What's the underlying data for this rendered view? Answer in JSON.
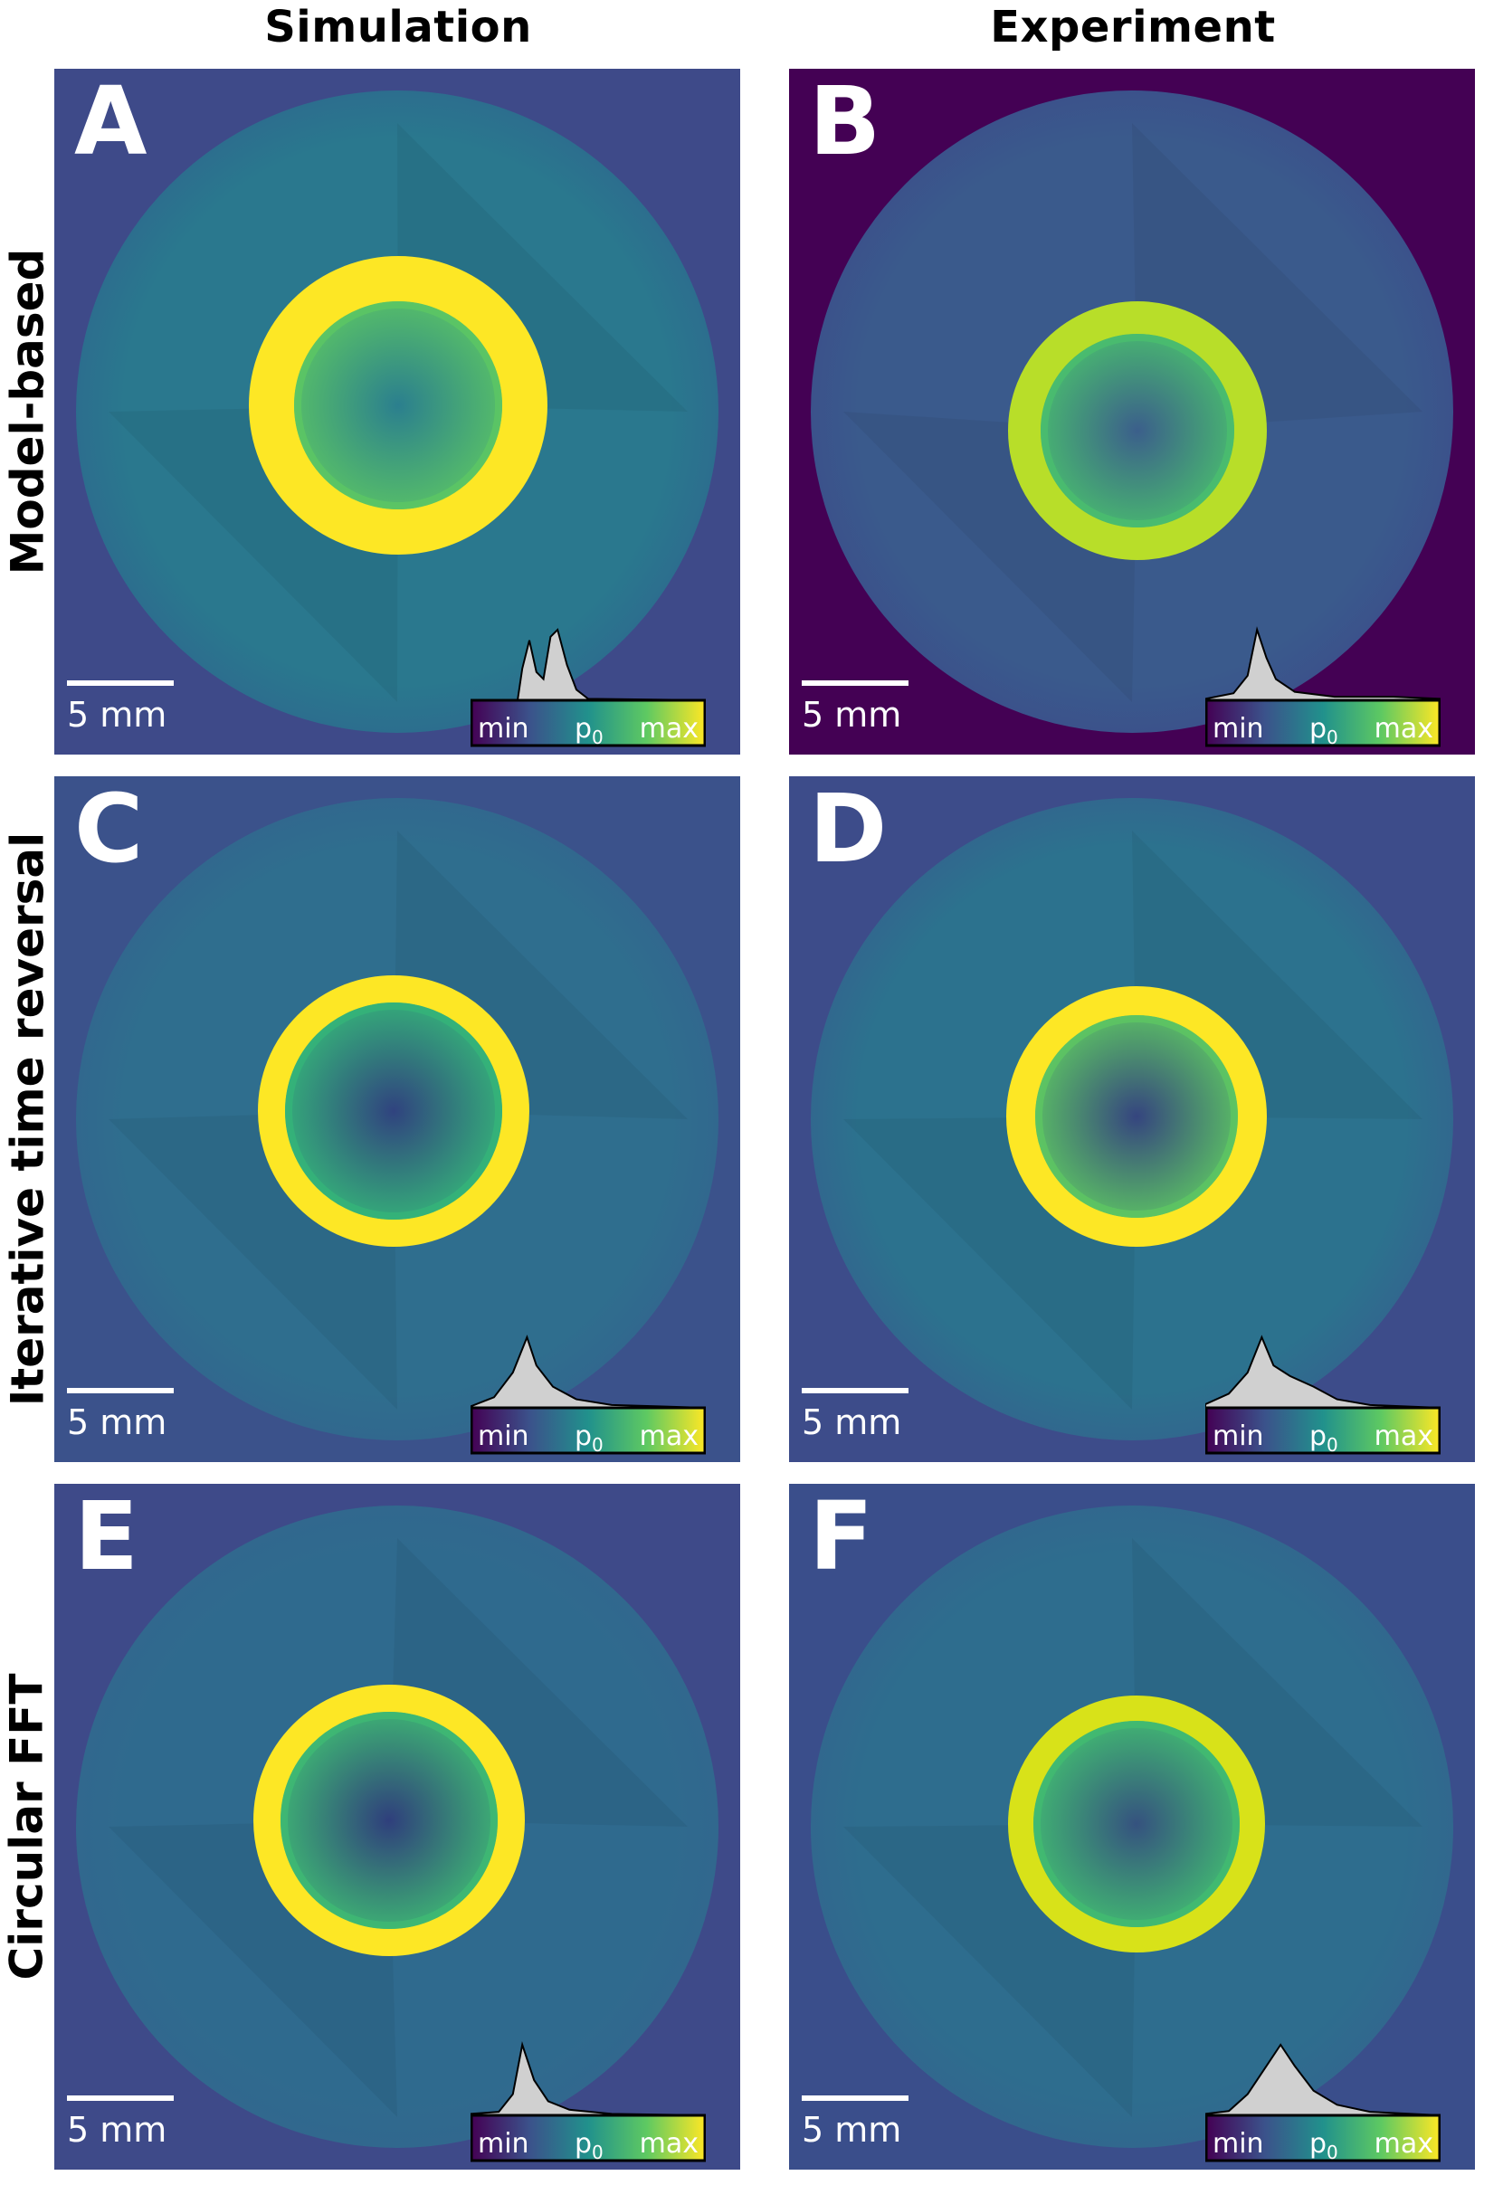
{
  "columns": [
    "Simulation",
    "Experiment"
  ],
  "rows": [
    "Model-based",
    "Iterative time reversal",
    "Circular FFT"
  ],
  "panels": [
    {
      "letter": "A",
      "scale": "5 mm",
      "cmin": "min",
      "cmid": "p",
      "csub": "0",
      "cmax": "max"
    },
    {
      "letter": "B",
      "scale": "5 mm",
      "cmin": "min",
      "cmid": "p",
      "csub": "0",
      "cmax": "max"
    },
    {
      "letter": "C",
      "scale": "5 mm",
      "cmin": "min",
      "cmid": "p",
      "csub": "0",
      "cmax": "max"
    },
    {
      "letter": "D",
      "scale": "5 mm",
      "cmin": "min",
      "cmid": "p",
      "csub": "0",
      "cmax": "max"
    },
    {
      "letter": "E",
      "scale": "5 mm",
      "cmin": "min",
      "cmid": "p",
      "csub": "0",
      "cmax": "max"
    },
    {
      "letter": "F",
      "scale": "5 mm",
      "cmin": "min",
      "cmid": "p",
      "csub": "0",
      "cmax": "max"
    }
  ],
  "colors": {
    "viridis_dark": "#440154",
    "viridis_blue": "#3b528b",
    "viridis_teal": "#21918c",
    "viridis_green": "#5ec962",
    "viridis_yellow": "#fde725",
    "histogram_fill": "#d0d0d0"
  }
}
